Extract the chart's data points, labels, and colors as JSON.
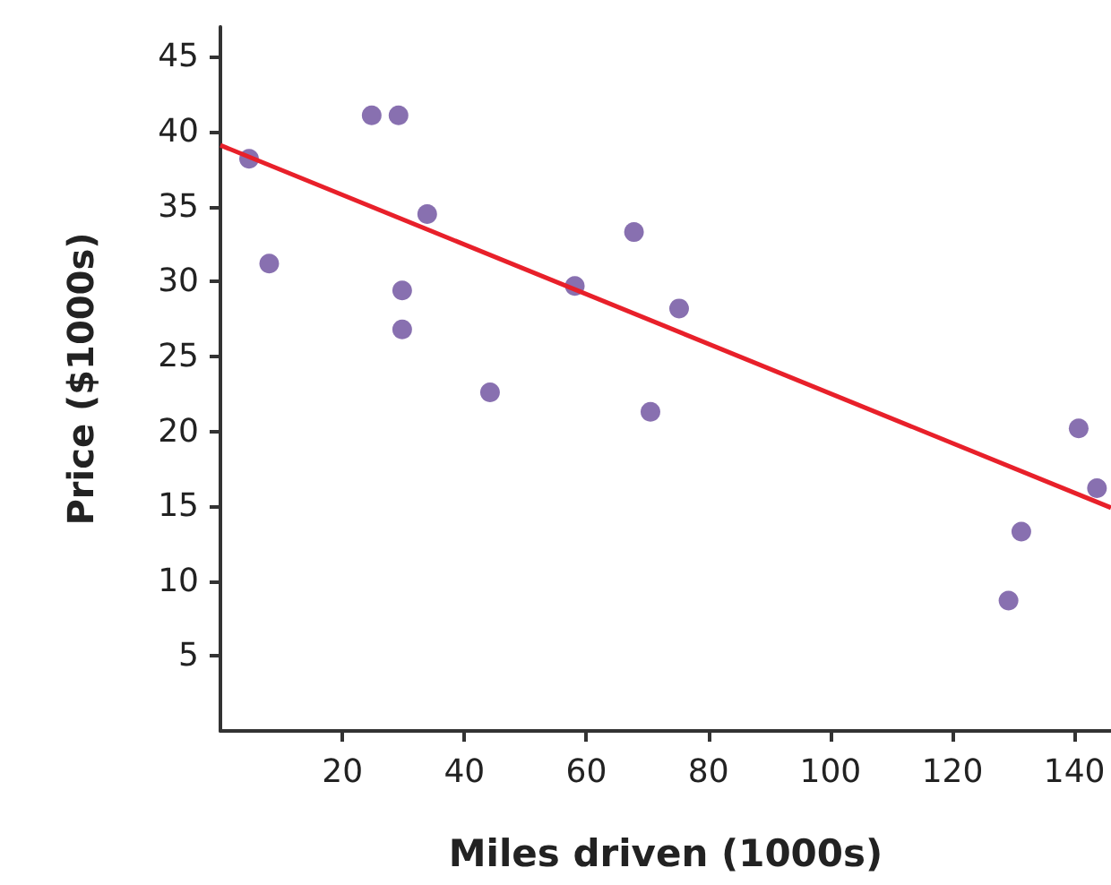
{
  "chart_data": {
    "type": "scatter",
    "xlabel": "Miles driven (1000s)",
    "ylabel": "Price ($1000s)",
    "xlim": [
      0,
      146
    ],
    "xticks": [
      20,
      40,
      60,
      80,
      100,
      120,
      140
    ],
    "ylim": [
      0,
      47
    ],
    "yticks": [
      5,
      10,
      15,
      20,
      25,
      30,
      35,
      40,
      45
    ],
    "series": [
      {
        "marker": "circle",
        "color": "#6a4c9c",
        "x": [
          4.7,
          8,
          24.8,
          29.2,
          33.9,
          29.8,
          29.8,
          44.2,
          58.1,
          67.8,
          75.2,
          70.5,
          129.2,
          131.3,
          140.7,
          143.7
        ],
        "values": [
          38.2,
          31.2,
          41.1,
          41.1,
          34.5,
          29.4,
          26.8,
          22.6,
          29.7,
          33.3,
          28.2,
          21.3,
          8.7,
          13.3,
          20.2,
          16.2
        ]
      },
      {
        "type": "line",
        "marker": "none",
        "color": "#e8202a",
        "x": [
          0,
          146
        ],
        "values": [
          39.1,
          14.9
        ]
      }
    ]
  }
}
